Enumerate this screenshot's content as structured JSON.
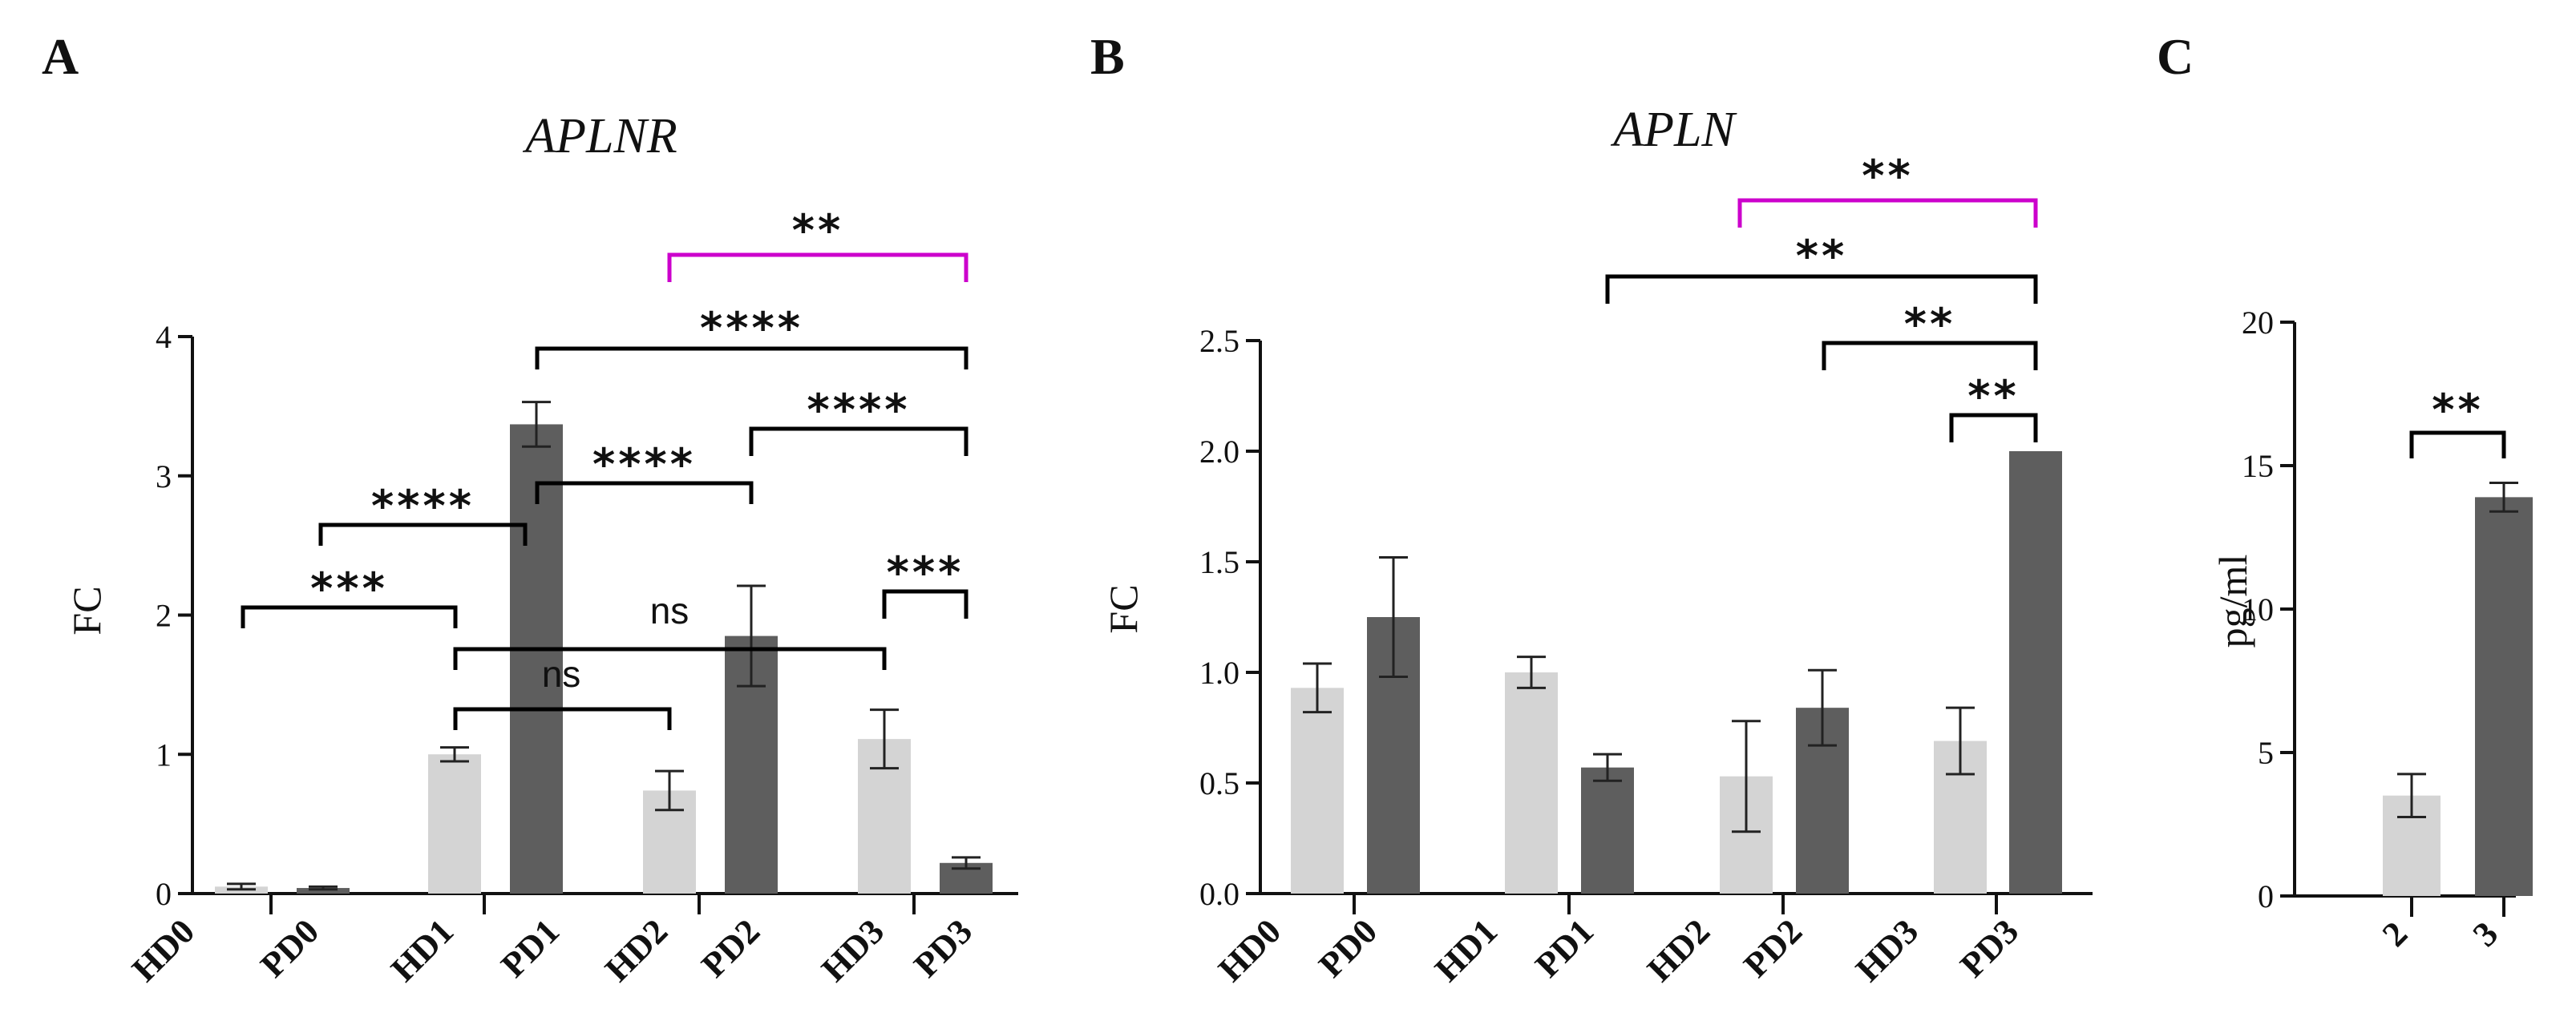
{
  "figure": {
    "panels": [
      "A",
      "B",
      "C"
    ]
  },
  "chart_data": [
    {
      "type": "bar",
      "panel": "A",
      "title": "APLNR",
      "ylabel": "FC",
      "xlabel": "",
      "ylim": [
        0,
        4
      ],
      "yticks": [
        0,
        1,
        2,
        3,
        4
      ],
      "ytick_labels": [
        "0",
        "1",
        "2",
        "3",
        "4"
      ],
      "categories": [
        "HD0",
        "PD0",
        "HD1",
        "PD1",
        "HD2",
        "PD2",
        "HD3",
        "PD3"
      ],
      "group_labels": [
        "HD",
        "PD"
      ],
      "values": [
        0.05,
        0.04,
        1.0,
        3.37,
        0.74,
        1.85,
        1.11,
        0.22
      ],
      "errors": [
        0.02,
        0.01,
        0.05,
        0.16,
        0.14,
        0.36,
        0.21,
        0.04
      ],
      "colors": {
        "HD": "#d4d4d4",
        "PD": "#5e5e5e"
      },
      "comparisons": [
        {
          "from": 0,
          "to": 2,
          "label": "***",
          "color": "#000000"
        },
        {
          "from": 1,
          "to": 3,
          "label": "****",
          "color": "#000000"
        },
        {
          "from": 2,
          "to": 4,
          "label": "ns",
          "color": "#000000"
        },
        {
          "from": 2,
          "to": 6,
          "label": "ns",
          "color": "#000000"
        },
        {
          "from": 3,
          "to": 5,
          "label": "****",
          "color": "#000000"
        },
        {
          "from": 6,
          "to": 7,
          "label": "***",
          "color": "#000000"
        },
        {
          "from": 5,
          "to": 7,
          "label": "****",
          "color": "#000000"
        },
        {
          "from": 3,
          "to": 7,
          "label": "****",
          "color": "#000000"
        },
        {
          "from": 4,
          "to": 7,
          "label": "**",
          "color": "#cc00cc"
        }
      ]
    },
    {
      "type": "bar",
      "panel": "B",
      "title": "APLN",
      "ylabel": "FC",
      "xlabel": "",
      "ylim": [
        0,
        2.5
      ],
      "yticks": [
        0,
        0.5,
        1.0,
        1.5,
        2.0,
        2.5
      ],
      "ytick_labels": [
        "0.0",
        "0.5",
        "1.0",
        "1.5",
        "2.0",
        "2.5"
      ],
      "categories": [
        "HD0",
        "PD0",
        "HD1",
        "PD1",
        "HD2",
        "PD2",
        "HD3",
        "PD3"
      ],
      "group_labels": [
        "HD",
        "PD"
      ],
      "values": [
        0.93,
        1.25,
        1.0,
        0.57,
        0.53,
        0.84,
        0.69,
        2.0
      ],
      "errors": [
        0.11,
        0.27,
        0.07,
        0.06,
        0.25,
        0.17,
        0.15,
        0.0
      ],
      "colors": {
        "HD": "#d4d4d4",
        "PD": "#5e5e5e"
      },
      "comparisons": [
        {
          "from": 6,
          "to": 7,
          "label": "**",
          "color": "#000000"
        },
        {
          "from": 5,
          "to": 7,
          "label": "**",
          "color": "#000000"
        },
        {
          "from": 3,
          "to": 7,
          "label": "**",
          "color": "#000000"
        },
        {
          "from": 4,
          "to": 7,
          "label": "**",
          "color": "#cc00cc"
        }
      ]
    },
    {
      "type": "bar",
      "panel": "C",
      "title": "",
      "ylabel": "pg/ml",
      "xlabel": "",
      "ylim": [
        0,
        20
      ],
      "yticks": [
        0,
        5,
        10,
        15,
        20
      ],
      "ytick_labels": [
        "0",
        "5",
        "10",
        "15",
        "20"
      ],
      "categories": [
        "2",
        "3"
      ],
      "values": [
        3.5,
        13.9
      ],
      "errors": [
        0.75,
        0.5
      ],
      "colors": [
        "#d4d4d4",
        "#5e5e5e"
      ],
      "comparisons": [
        {
          "from": 0,
          "to": 1,
          "label": "**",
          "color": "#000000"
        }
      ]
    }
  ]
}
